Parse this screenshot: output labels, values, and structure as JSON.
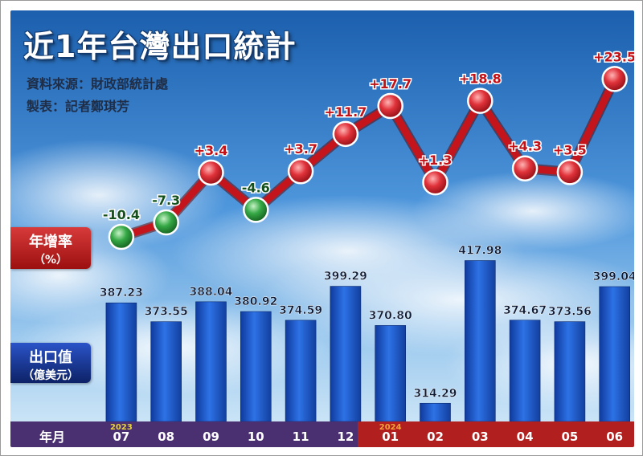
{
  "title": "近1年台灣出口統計",
  "source": "資料來源：財政部統計處",
  "author": "製表：記者鄭琪芳",
  "growth_label": {
    "main": "年增率",
    "unit": "（%）"
  },
  "value_label": {
    "main": "出口值",
    "unit": "（億美元）"
  },
  "xaxis_title": "年月",
  "colors": {
    "bar": "#1f5fd6",
    "line": "#c4151c",
    "negative_marker": "#2e9a3e",
    "positive_marker": "#d6272c",
    "year_2023": "#e8d23a",
    "year_2024": "#f2a13a"
  },
  "chart_data": {
    "type": "bar+line",
    "categories": [
      "07",
      "08",
      "09",
      "10",
      "11",
      "12",
      "01",
      "02",
      "03",
      "04",
      "05",
      "06"
    ],
    "year_tags": [
      {
        "index": 0,
        "label": "2023"
      },
      {
        "index": 6,
        "label": "2024"
      }
    ],
    "bars": {
      "name": "出口值（億美元）",
      "values": [
        387.23,
        373.55,
        388.04,
        380.92,
        374.59,
        399.29,
        370.8,
        314.29,
        417.98,
        374.67,
        373.56,
        399.04
      ],
      "labels": [
        "387.23",
        "373.55",
        "388.04",
        "380.92",
        "374.59",
        "399.29",
        "370.80",
        "314.29",
        "417.98",
        "374.67",
        "373.56",
        "399.04"
      ]
    },
    "line": {
      "name": "年增率（%）",
      "values": [
        -10.4,
        -7.3,
        3.4,
        -4.6,
        3.7,
        11.7,
        17.7,
        1.3,
        18.8,
        4.3,
        3.5,
        23.5
      ],
      "labels": [
        "-10.4",
        "-7.3",
        "+3.4",
        "-4.6",
        "+3.7",
        "+11.7",
        "+17.7",
        "+1.3",
        "+18.8",
        "+4.3",
        "+3.5",
        "+23.5"
      ]
    },
    "grid": false
  }
}
